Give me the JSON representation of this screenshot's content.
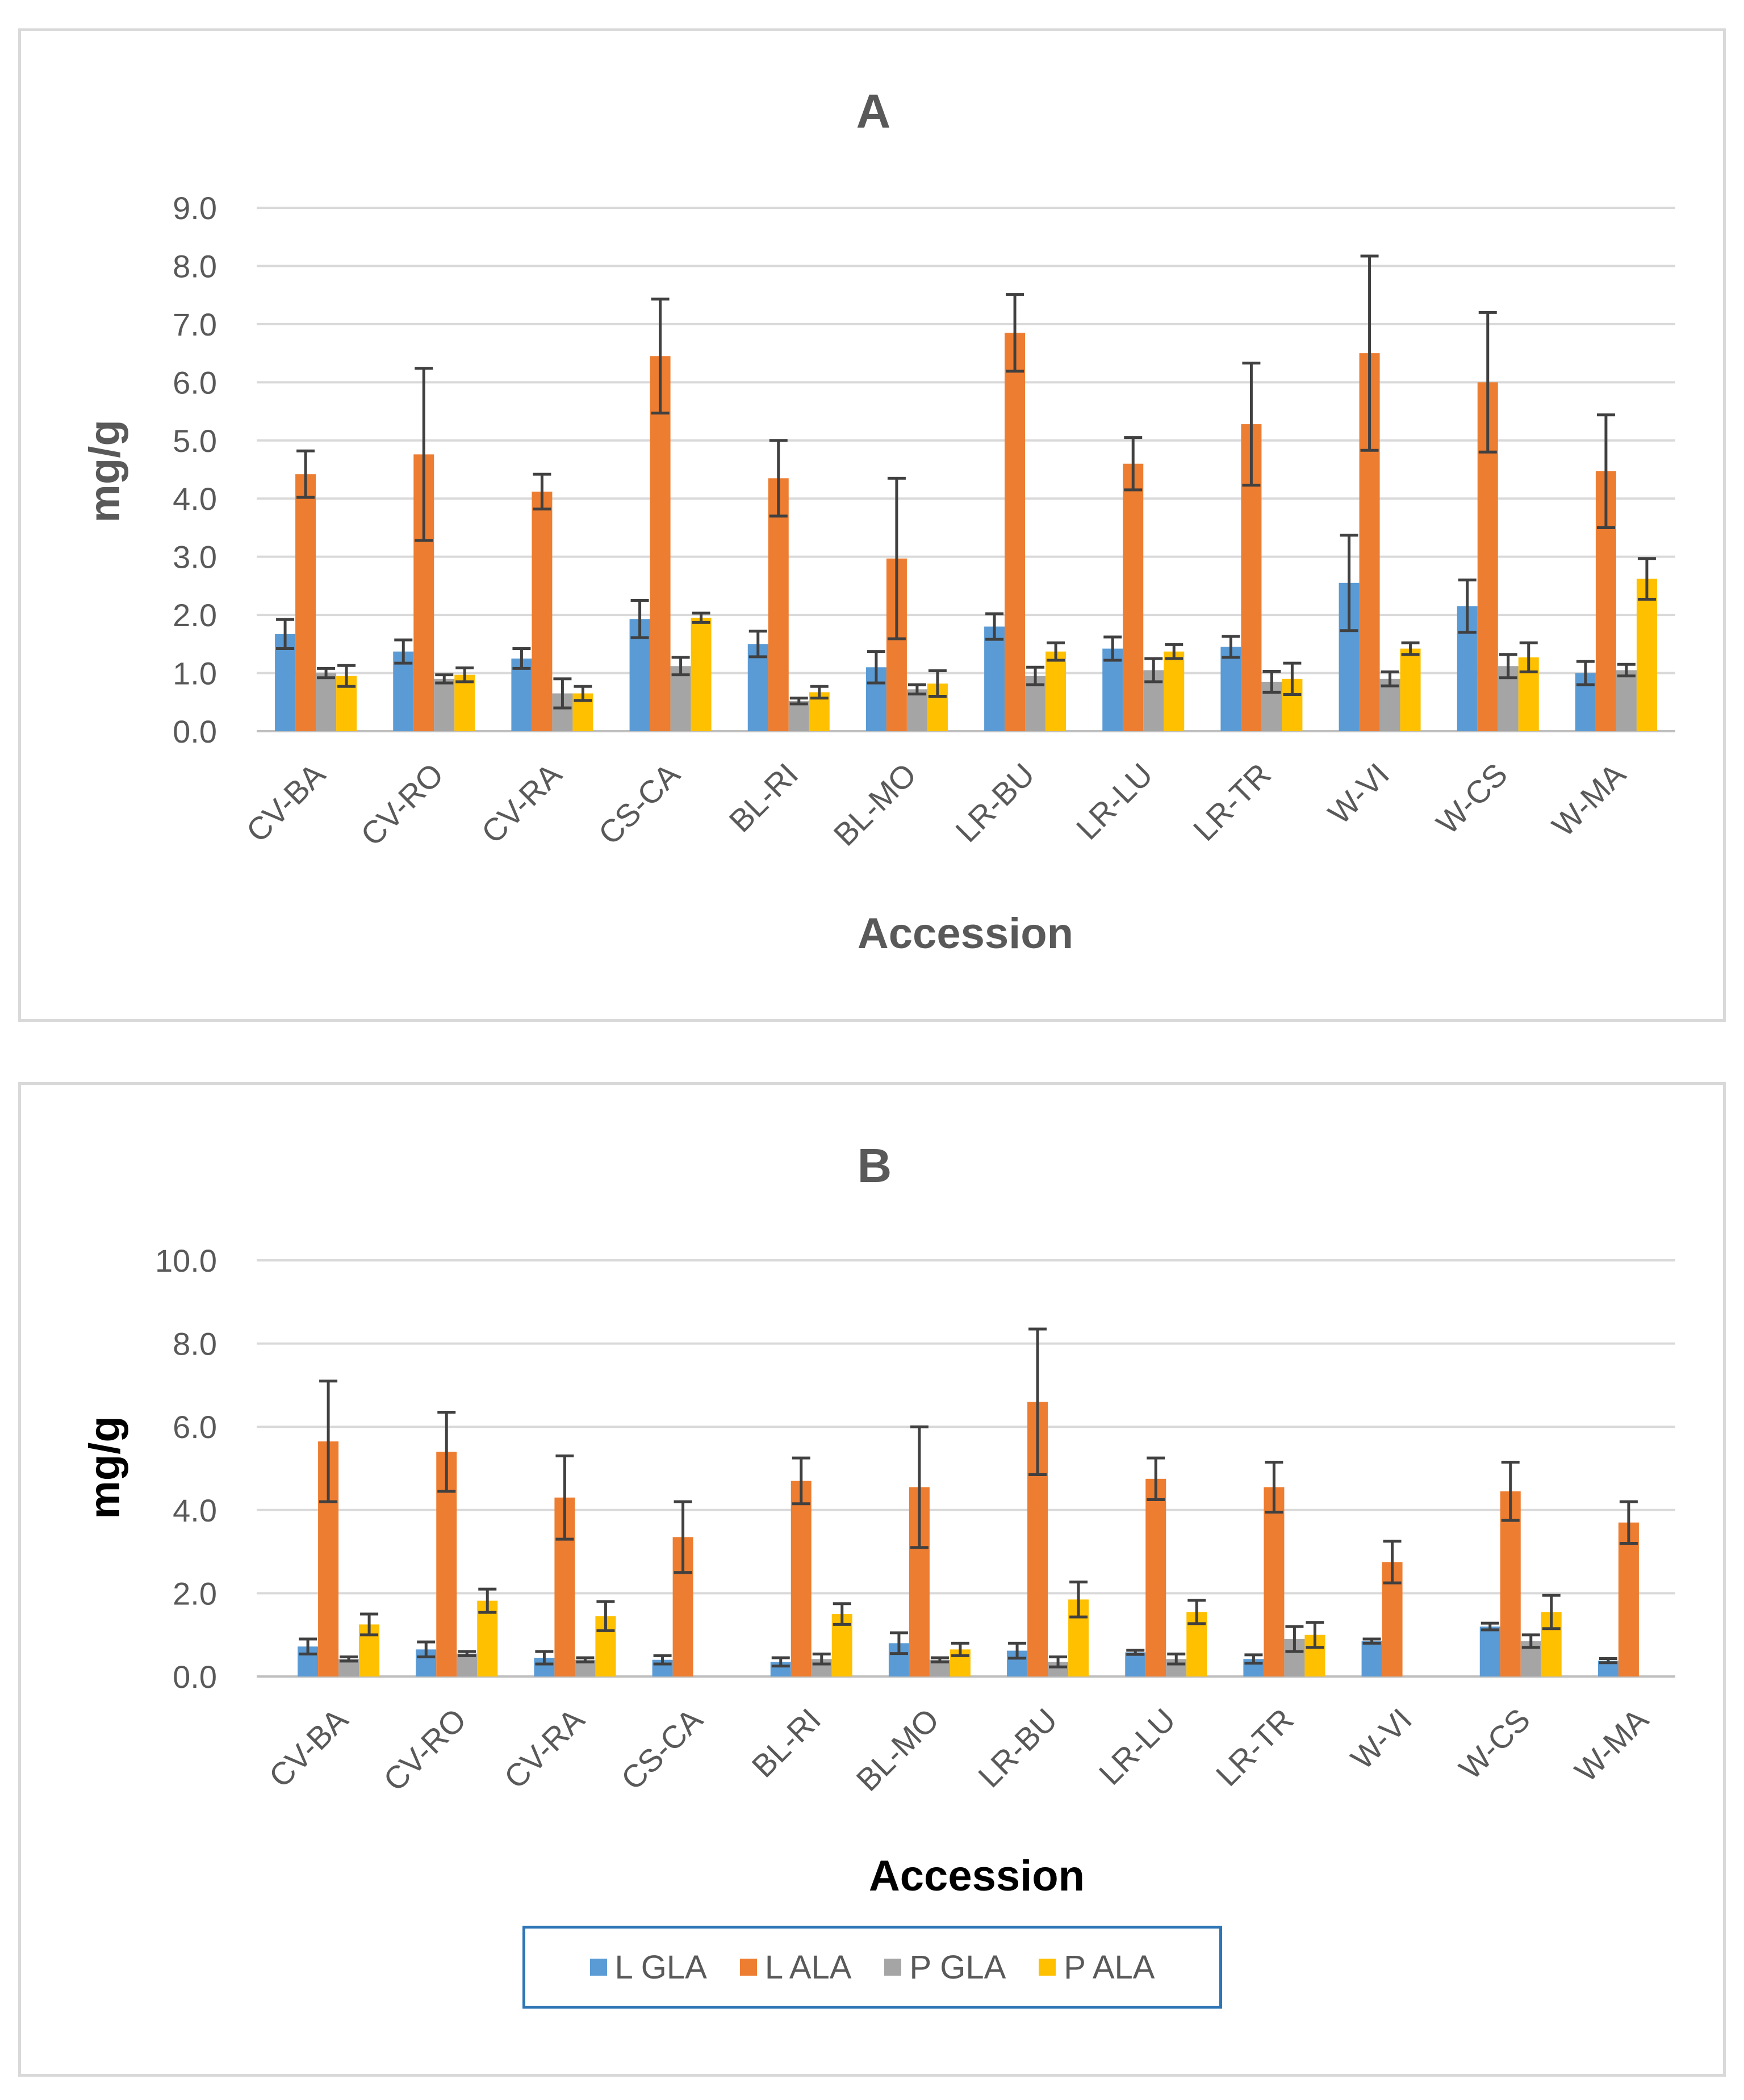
{
  "chart_data": [
    {
      "type": "bar",
      "title": "A",
      "xlabel": "Accession",
      "ylabel": "mg/g",
      "ylim": [
        0,
        9
      ],
      "yticks": [
        "0.0",
        "1.0",
        "2.0",
        "3.0",
        "4.0",
        "5.0",
        "6.0",
        "7.0",
        "8.0",
        "9.0"
      ],
      "grid": true,
      "categories": [
        "CV-BA",
        "CV-RO",
        "CV-RA",
        "CS-CA",
        "BL-RI",
        "BL-MO",
        "LR-BU",
        "LR-LU",
        "LR-TR",
        "W-VI",
        "W-CS",
        "W-MA"
      ],
      "series": [
        {
          "name": "L GLA",
          "color": "#5b9bd5",
          "values": [
            1.67,
            1.37,
            1.25,
            1.93,
            1.5,
            1.1,
            1.8,
            1.42,
            1.45,
            2.55,
            2.15,
            1.0
          ],
          "errors": [
            0.25,
            0.2,
            0.17,
            0.32,
            0.22,
            0.27,
            0.22,
            0.2,
            0.18,
            0.82,
            0.45,
            0.2
          ]
        },
        {
          "name": "L ALA",
          "color": "#ed7d31",
          "values": [
            4.42,
            4.76,
            4.12,
            6.45,
            4.35,
            2.97,
            6.85,
            4.6,
            5.28,
            6.5,
            6.0,
            4.47
          ],
          "errors": [
            0.4,
            1.48,
            0.3,
            0.98,
            0.65,
            1.38,
            0.66,
            0.45,
            1.05,
            1.67,
            1.2,
            0.97
          ]
        },
        {
          "name": "P GLA",
          "color": "#a5a5a5",
          "values": [
            1.0,
            0.9,
            0.65,
            1.12,
            0.52,
            0.72,
            0.95,
            1.05,
            0.85,
            0.9,
            1.12,
            1.05
          ],
          "errors": [
            0.08,
            0.07,
            0.25,
            0.15,
            0.05,
            0.08,
            0.15,
            0.2,
            0.18,
            0.12,
            0.2,
            0.1
          ]
        },
        {
          "name": "P ALA",
          "color": "#ffc000",
          "values": [
            0.95,
            0.97,
            0.65,
            1.95,
            0.67,
            0.82,
            1.37,
            1.37,
            0.9,
            1.42,
            1.27,
            2.62
          ],
          "errors": [
            0.18,
            0.12,
            0.12,
            0.08,
            0.1,
            0.22,
            0.15,
            0.12,
            0.27,
            0.1,
            0.25,
            0.35
          ]
        }
      ]
    },
    {
      "type": "bar",
      "title": "B",
      "xlabel": "Accession",
      "ylabel": "mg/g",
      "ylim": [
        0,
        10
      ],
      "yticks": [
        "0.0",
        "2.0",
        "4.0",
        "6.0",
        "8.0",
        "10.0"
      ],
      "grid": true,
      "categories": [
        "CV-BA",
        "CV-RO",
        "CV-RA",
        "CS-CA",
        "BL-RI",
        "BL-MO",
        "LR-BU",
        "LR-LU",
        "LR-TR",
        "W-VI",
        "W-CS",
        "W-MA"
      ],
      "series": [
        {
          "name": "L GLA",
          "color": "#5b9bd5",
          "values": [
            0.72,
            0.65,
            0.45,
            0.4,
            0.35,
            0.8,
            0.62,
            0.58,
            0.42,
            0.85,
            1.2,
            0.38
          ],
          "errors": [
            0.18,
            0.18,
            0.15,
            0.1,
            0.1,
            0.25,
            0.18,
            0.05,
            0.1,
            0.05,
            0.08,
            0.05
          ]
        },
        {
          "name": "L ALA",
          "color": "#ed7d31",
          "values": [
            5.65,
            5.4,
            4.3,
            3.35,
            4.7,
            4.55,
            6.6,
            4.75,
            4.55,
            2.75,
            4.45,
            3.7
          ],
          "errors": [
            1.45,
            0.95,
            1.0,
            0.85,
            0.55,
            1.45,
            1.75,
            0.5,
            0.6,
            0.5,
            0.7,
            0.5
          ]
        },
        {
          "name": "P GLA",
          "color": "#a5a5a5",
          "values": [
            0.42,
            0.55,
            0.4,
            0.0,
            0.42,
            0.4,
            0.35,
            0.42,
            0.9,
            0.0,
            0.85,
            0.0
          ],
          "errors": [
            0.05,
            0.05,
            0.05,
            0.0,
            0.12,
            0.05,
            0.12,
            0.12,
            0.3,
            0.0,
            0.15,
            0.0
          ]
        },
        {
          "name": "P ALA",
          "color": "#ffc000",
          "values": [
            1.25,
            1.82,
            1.45,
            0.0,
            1.5,
            0.65,
            1.85,
            1.55,
            1.0,
            0.0,
            1.55,
            0.0
          ],
          "errors": [
            0.25,
            0.28,
            0.35,
            0.0,
            0.25,
            0.15,
            0.42,
            0.28,
            0.3,
            0.0,
            0.4,
            0.0
          ]
        }
      ]
    }
  ],
  "legend": [
    {
      "label": "L GLA",
      "color": "#5b9bd5"
    },
    {
      "label": "L ALA",
      "color": "#ed7d31"
    },
    {
      "label": "P GLA",
      "color": "#a5a5a5"
    },
    {
      "label": "P ALA",
      "color": "#ffc000"
    }
  ]
}
